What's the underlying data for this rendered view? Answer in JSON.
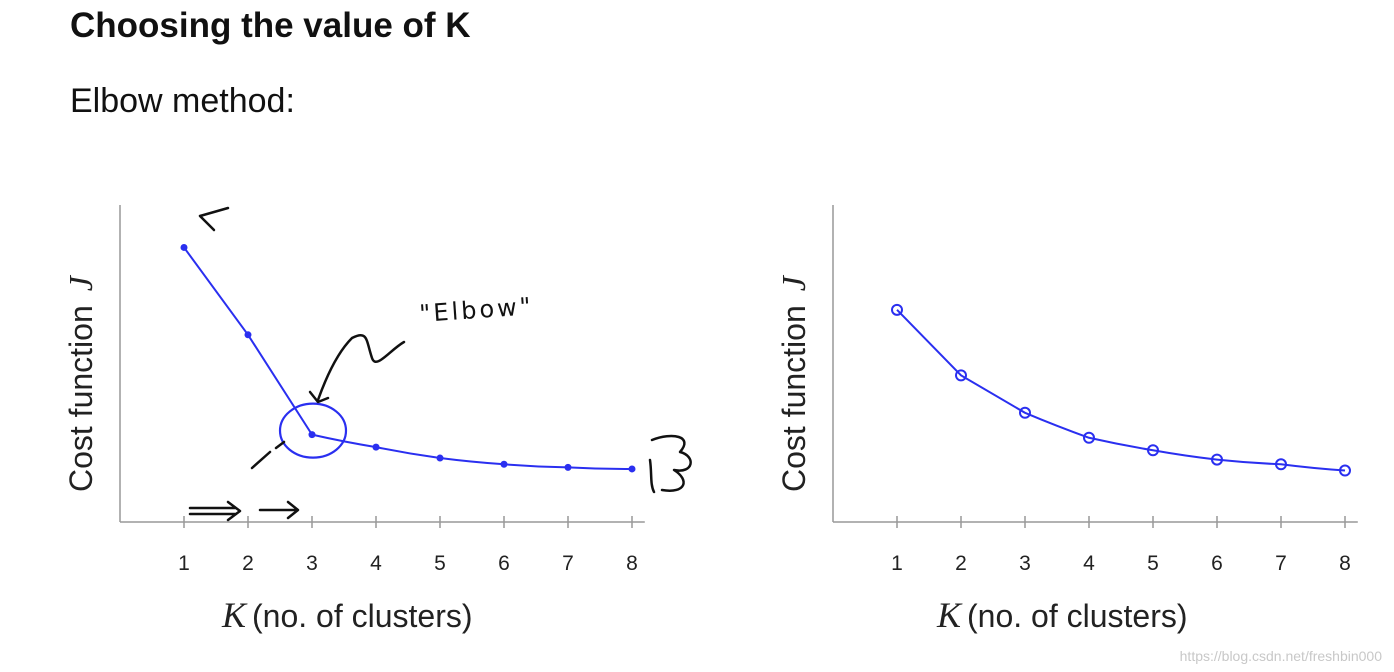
{
  "header": {
    "title": "Choosing the value of K",
    "subtitle": "Elbow method:"
  },
  "watermark": "https://blog.csdn.net/freshbin000",
  "colors": {
    "curve": "#2a2ff0",
    "axis": "#999999",
    "ink": "#111111"
  },
  "chart_data": [
    {
      "type": "line",
      "x": [
        1,
        2,
        3,
        4,
        5,
        6,
        7,
        8
      ],
      "series": [
        {
          "values": [
            88,
            60,
            28,
            24,
            20.5,
            18.5,
            17.5,
            17
          ]
        }
      ],
      "xlabel_italic": "K",
      "xlabel": "(no. of clusters)",
      "ylabel": "Cost function",
      "ylabel_italic": "J",
      "xticks": [
        "1",
        "2",
        "3",
        "4",
        "5",
        "6",
        "7",
        "8"
      ],
      "xlim": [
        0,
        8.2
      ],
      "ylim": [
        0,
        100
      ],
      "grid": false,
      "annotations": [
        "\"Elbow\""
      ]
    },
    {
      "type": "line",
      "x": [
        1,
        2,
        3,
        4,
        5,
        6,
        7,
        8
      ],
      "series": [
        {
          "values": [
            68,
            47,
            35,
            27,
            23,
            20,
            18.5,
            16.5
          ]
        }
      ],
      "xlabel_italic": "K",
      "xlabel": "(no. of clusters)",
      "ylabel": "Cost function",
      "ylabel_italic": "J",
      "xticks": [
        "1",
        "2",
        "3",
        "4",
        "5",
        "6",
        "7",
        "8"
      ],
      "xlim": [
        0,
        8.2
      ],
      "ylim": [
        0,
        100
      ],
      "grid": false
    }
  ]
}
